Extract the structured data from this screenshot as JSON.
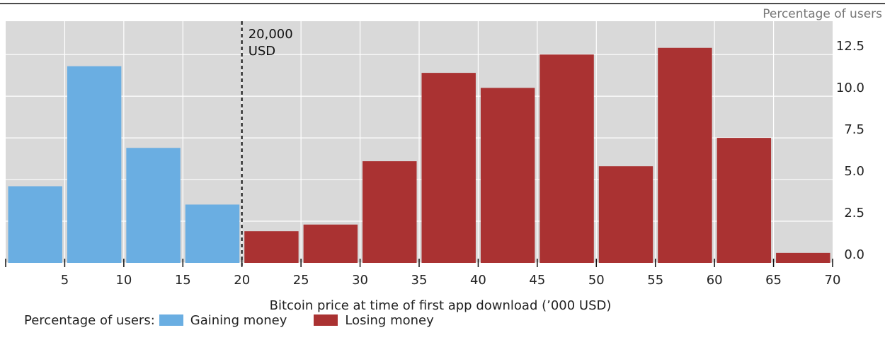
{
  "chart_data": {
    "type": "bar",
    "x_ticks": [
      "5",
      "10",
      "15",
      "20",
      "25",
      "30",
      "35",
      "40",
      "45",
      "50",
      "55",
      "60",
      "65",
      "70"
    ],
    "xlabel": "Bitcoin price at time of first app download (’000 USD)",
    "ylabel": "Percentage of users",
    "y_ticks": [
      "0.0",
      "2.5",
      "5.0",
      "7.5",
      "10.0",
      "12.5"
    ],
    "ylim": [
      0,
      14.5
    ],
    "xlim": [
      0,
      70
    ],
    "bin_width": 5,
    "grid": true,
    "bars": [
      {
        "x0": 0,
        "x1": 5,
        "value": 4.6,
        "series": "gaining"
      },
      {
        "x0": 5,
        "x1": 10,
        "value": 11.8,
        "series": "gaining"
      },
      {
        "x0": 10,
        "x1": 15,
        "value": 6.9,
        "series": "gaining"
      },
      {
        "x0": 15,
        "x1": 20,
        "value": 3.5,
        "series": "gaining"
      },
      {
        "x0": 20,
        "x1": 25,
        "value": 1.9,
        "series": "losing"
      },
      {
        "x0": 25,
        "x1": 30,
        "value": 2.3,
        "series": "losing"
      },
      {
        "x0": 30,
        "x1": 35,
        "value": 6.1,
        "series": "losing"
      },
      {
        "x0": 35,
        "x1": 40,
        "value": 11.4,
        "series": "losing"
      },
      {
        "x0": 40,
        "x1": 45,
        "value": 10.5,
        "series": "losing"
      },
      {
        "x0": 45,
        "x1": 50,
        "value": 12.5,
        "series": "losing"
      },
      {
        "x0": 50,
        "x1": 55,
        "value": 5.8,
        "series": "losing"
      },
      {
        "x0": 55,
        "x1": 60,
        "value": 12.9,
        "series": "losing"
      },
      {
        "x0": 60,
        "x1": 65,
        "value": 7.5,
        "series": "losing"
      },
      {
        "x0": 65,
        "x1": 70,
        "value": 0.6,
        "series": "losing"
      }
    ],
    "annotation": {
      "x": 20,
      "line1": "20,000",
      "line2": "USD"
    },
    "legend": {
      "prefix": "Percentage of users:",
      "placement": "bottom-left",
      "items": [
        {
          "key": "gaining",
          "label": "Gaining money",
          "color": "#6aaee2"
        },
        {
          "key": "losing",
          "label": "Losing money",
          "color": "#aa3232"
        }
      ]
    }
  }
}
